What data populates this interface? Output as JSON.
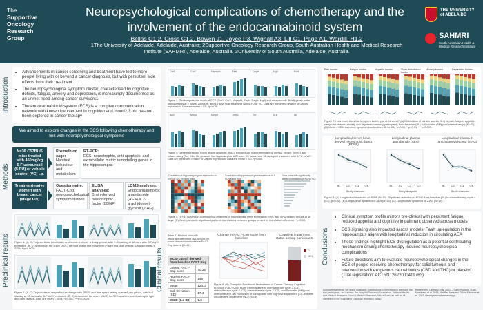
{
  "header": {
    "group_logo": [
      "The",
      "Supportive",
      "Oncology",
      "Research",
      "Group"
    ],
    "title": "Neuropsychological complications of chemotherapy and the involvement of the endocannabinoid system",
    "authors": "Bellas O1,2, Cross C1,2, Bowen J1, Joyce P3, Wignall A3, Lill C1, Page A1, Wardill, H1,2",
    "affiliations": "1The University of Adelaide, Adelaide, Australia; 2Supportive Oncology Research Group, South Australian Health and Medical Research Institute (SAHMRI), Adelaide, Australia; 3University of South Australia, Adelaide, Australia.",
    "uni_logo_text": "THE UNIVERSITY of ADELAIDE",
    "sahmri_text": "SAHMRI",
    "sahmri_sub": "South Australian Health & Medical Research Institute",
    "colors": {
      "brand": "#1f4b56",
      "accent": "#4ea3b6"
    }
  },
  "sections": {
    "intro": "Introduction",
    "methods": "Methods",
    "preclinical": "Preclinical results",
    "clinical": "Clinical results",
    "conclusions": "Conclusions"
  },
  "intro": {
    "bullets": [
      "Advancements in cancer screening and treatment have led to more people living with or beyond a cancer diagnosis, but with persistent side effects from their treatment",
      "The neuropsychological symptom cluster, characterised by cognitive deficits, fatigue, anxiety and depression, is increasingly documented as an unmet need among cancer survivors1",
      "The endocannabinoid system (ECS) is a complex communication network with known involvement in cognition and mood2,3 but has not been explored in cancer therapy"
    ],
    "aim": "We aimed to explore changes in the ECS following chemotherapy and link with neuropsychological symptoms"
  },
  "methods": {
    "mice": "N=36 C57BL/6 mice treated with 450mg/kg 5-Fluorouracil (5-FU) or vehicle control (VC) i.p.",
    "promethion_title": "Promethion cage:",
    "promethion_body": "Habitual behaviour and metabolism",
    "rtpcr_title": "RT-PCR:",
    "rtpcr_body": "ECS, neurotrophic, anti-apoptotic, and extracellular matrix remodelling genes in the hippocampus",
    "women": "Treatment-naive women with breast cancer (stage I-IV)",
    "quest_title": "Questionnaire:",
    "quest_body": "FACT-Cog, neuropsychological symptom burden",
    "elisa_title": "ELISA analyses:",
    "elisa_body": "Brain-derived neurotrophic factor (BDNF)",
    "lcms_title": "LCMS analyses:",
    "lcms_body": "Endocannabinoids: anandamide (AEA) & 2-arachidonoyl-glycerol (2-AG)"
  },
  "captions": {
    "fig1": "Figure 1. (A, C) Trajectories of food intake and movement over a 4-day period, with Y=0 starting at 12 days after 5-FU/VC treatment. (B, D) Area under the curve (AUC) for food intake and movement in light and dark phases. Data are mean ± SEM. **p<0.0001",
    "fig2": "Figure 2. (A, C) Trajectories of respiratory exchange ratio (RER) and time spent asleep over a 4-day period, with Y=0 starting at 12 days after 5-FU/VC treatment. (B, D) Area under the curve (AUC) for RER and time spent asleep in light and dark phases. Data are mean ± SEM. *p<0.01, ***p<0.0001.",
    "fig3": "Figure 3. Gene expression levels of ECS (Cnr1, Cnr2, Napepld, Faah, Dagla, Mgll) and neurotrophic (Bdnf) genes in the hippocampus at 2 hours, 24 hours, and 16 days post treatment with 5-FU or VC. Data are presented relative to Gapdh expression. Data are mean ± SD. *p<0.05.",
    "fig4": "Figure 4. Gene expression levels of anti-apoptotic (Bcl2), extracellular matrix remodelling (Mmp2, Mmp9, Timp1) and inflammatory (Tnf, Il1b, Il6) genes in the hippocampus at 2 hours, 24 hours, and 16 days post treatment with 5-FU or VC. Data are presented relative to Gapdh expression. Data are mean ± SD. *p<0.05.",
    "fig5": "Figure 5. (A+B) Spearman correlation (ρ) matrices of hippocampal gene expression in VC and 5-FU treated groups at 16 days. (C) Gene pairs with significantly altered correlations between groups ranked by correlation difference. *p<0.05.",
    "table1": "Table 1. Minimal clinically important difference (MCID) cut-off score derived from baseline FACT-Cog scores (N=45).",
    "fig6": "Figure 6. (A) Change in Functional Assessment of Cancer Therapy-Cognitive Function (FACT-Cog) score from baseline to chemotherapy cycle 1 (C1), chemotherapy cycle 2 (C2), chemotherapy cycle 3 (C3), and 6-months (6M) post chemotherapy. (B) Proportion of participants with cognitive impairment (CI) and with no cognitive impairment (NCI) (N=8).",
    "fig7": "Figure 7. How much does the symptom bother you at its worst? (A) Distribution of burden scores (0-4) of pain, fatigue, appetite, sleep disturbance, anxiety and depression among participants from baseline (BL) to 6-months (6M) post chemotherapy (N=23). (B) Mean ± SEM trajectory symptom burden from BL to 6M. *p<0.05, **p<0.01, ***p<0.001.",
    "fig8": "Figure 8. (A) Longitudinal dynamics of BDNF (N=12). Significant reduction in BDNF from baseline (BL) to chemotherapy cycle 4 (C4) (p<0.01). (B) Longitudinal dynamics of AEA (N=13). (C) Longitudinal dynamics of 2-AG (N=13)."
  },
  "panels": {
    "fig3_genes": [
      "Cnr1",
      "Cnr2",
      "Napepld",
      "Faah",
      "Dagla",
      "Mgll",
      "Bdnf"
    ],
    "fig4_genes": [
      "Bcl2",
      "Mmp2",
      "Mmp9",
      "Timp1",
      "Tnf",
      "Il1b",
      "Il6"
    ],
    "fig7_symptoms": [
      "Pain burden",
      "Fatigue burden",
      "Appetite burden",
      "Sleep disturbance burden",
      "Anxiety burden",
      "Depression burden"
    ],
    "fig8_titles": [
      "Longitudinal serum brain-derived neurotrophic factor (BDNF)",
      "Longitudinal plasma anandamide (AEA)",
      "Longitudinal plasma 2-arachidonoylglycerol (2-AG)"
    ],
    "fig8_xticks": [
      "BL",
      "C2",
      "C3",
      "C4"
    ],
    "fig8_xlabel": "Study timepoint",
    "fig6_title": "Change in FACT-Cog score from baseline",
    "fig6b_title": "Cognitive impairment status among participants",
    "fig6_legend": [
      "CI",
      "NCI"
    ],
    "fig5_labels": [
      "Correlation of hippocampal gene expression in vehicle (VC) treated mice",
      "Correlation of hippocampal gene expression in 5-FU treated mice",
      "Gene pairs with significantly altered correlations (5-FU vs VC)"
    ]
  },
  "table1": {
    "header": "MCID cut-off derived from baseline FACT-Cog",
    "rows": [
      [
        "Lowest FACT-Cog score",
        "70.25"
      ],
      [
        "Highest FACT-Cog score",
        "148"
      ],
      [
        "Mean",
        "124.0"
      ],
      [
        "Std. Deviation (SD)",
        "17.4"
      ],
      [
        "MCID (0.4 SD)",
        "7.0"
      ]
    ]
  },
  "conclusions": {
    "bullets": [
      "Clinical symptom profile mirrors pre-clinical with persistent fatigue, reduced appetite and cognitive impairment observed across models",
      "ECS signaling also impacted across models; Faah upregulation in the hippocampus aligns with longitudinal reduction in circulating AEA",
      "These findings highlight ECS dysregulation as a potential contributing mechanism driving chemotherapy-induced neuropsychological complications",
      "Future directions aim to evaluate neuropsychological changes in the ECS of people receiving chemotherapy for solid tumours and intervention with exogenous cannabinoids (CBD and THC) or placebo (Trial registration: ACTRN12622000419763)."
    ],
    "ack": "Acknowledgements: We thank invaluable contributions to the research we thank the trial participants, our funders: the Hospital Research Foundation, National Health and Medical Research Council, Medical Research Future Fund, as well as all members of the Supportive Oncology Research Group.",
    "refs": "References: 1Bandoy et al. 2021, J Cancer Surviv. 2Lutz, Marsicano et al. 2015, Nat Rev Neurosci. 3Dow-Edwards et al. 2021, Neuropsychopharmacology."
  },
  "chart_data": [
    {
      "type": "line",
      "title": "Longitudinal serum brain-derived neurotrophic factor (BDNF)",
      "xlabel": "Study timepoint",
      "categories": [
        "BL",
        "C2",
        "C3",
        "C4"
      ],
      "series": [
        {
          "values": [
            36,
            30,
            26,
            20
          ]
        }
      ]
    },
    {
      "type": "line",
      "title": "Longitudinal plasma anandamide (AEA)",
      "xlabel": "Study timepoint",
      "categories": [
        "BL",
        "C2",
        "C3",
        "C4"
      ],
      "series": [
        {
          "values": [
            3.0,
            2.4,
            2.0,
            1.5
          ]
        }
      ]
    },
    {
      "type": "line",
      "title": "Longitudinal plasma 2-arachidonoylglycerol (2-AG)",
      "xlabel": "Study timepoint",
      "categories": [
        "BL",
        "C2",
        "C3",
        "C4"
      ],
      "series": [
        {
          "values": [
            7,
            4,
            4,
            3
          ]
        }
      ]
    }
  ]
}
